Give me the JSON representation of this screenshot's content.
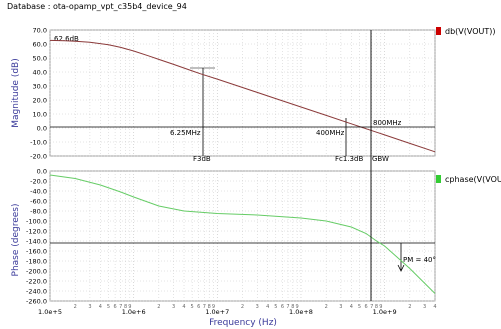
{
  "header": {
    "database_label": "Database : ota-opamp_vpt_c35b4_device_94"
  },
  "colors": {
    "magnitude": "#8b3a3a",
    "phase": "#66cc66",
    "legend_mag": "#cc0000",
    "legend_phase": "#33cc33"
  },
  "chart_data": [
    {
      "type": "line",
      "legend": "db(V(VOUT))",
      "xlabel": "",
      "ylabel": "Magnitude (dB)",
      "xscale": "log",
      "xlim": [
        100000,
        4000000000
      ],
      "ylim": [
        -20,
        70
      ],
      "yticks": [
        70.0,
        60.0,
        50.0,
        40.0,
        30.0,
        20.0,
        10.0,
        0.0,
        -10.0,
        -20.0
      ],
      "ytick_labels": [
        "70.0",
        "60.0",
        "50.0",
        "40.0",
        "30.0",
        "20.0",
        "10.0",
        "0.0",
        "-10.0",
        "-20.0"
      ],
      "grid": true,
      "series": [
        {
          "name": "db(V(VOUT))",
          "x": [
            100000,
            150000,
            200000,
            300000,
            500000,
            700000,
            1000000,
            1500000,
            2000000,
            3000000,
            5000000,
            6250000,
            10000000,
            20000000,
            50000000,
            100000000,
            200000000,
            400000000,
            800000000,
            1000000000,
            2000000000,
            4000000000
          ],
          "y": [
            62.6,
            62.3,
            62.0,
            61.2,
            59.4,
            57.6,
            55.0,
            51.6,
            49.0,
            45.4,
            40.8,
            38.8,
            34.9,
            28.9,
            21.0,
            15.0,
            9.0,
            3.0,
            -3.0,
            -4.9,
            -11.0,
            -17.0
          ]
        }
      ],
      "annotations": [
        "62.6dB",
        "6.25MHz",
        "F3dB",
        "400MHz",
        "Fc1.3dB",
        "800MHz"
      ]
    },
    {
      "type": "line",
      "legend": "cphase(V(VOU",
      "xlabel": "Frequency (Hz)",
      "ylabel": "Phase (degrees)",
      "xscale": "log",
      "xlim": [
        100000,
        4000000000
      ],
      "ylim": [
        -260,
        0
      ],
      "yticks": [
        0,
        -20,
        -40,
        -60,
        -80,
        -100,
        -120,
        -140,
        -160,
        -180,
        -200,
        -220,
        -240,
        -260
      ],
      "ytick_labels": [
        "0.0",
        "-20.0",
        "-40.0",
        "-60.0",
        "-80.0",
        "-100.0",
        "-120.0",
        "-140.0",
        "-160.0",
        "-180.0",
        "-200.0",
        "-220.0",
        "-240.0",
        "-260.0"
      ],
      "xtick_labels": [
        "1.0e+5",
        "1.0e+6",
        "1.0e+7",
        "1.0e+8",
        "1.0e+9"
      ],
      "grid": true,
      "series": [
        {
          "name": "cphase(V(VOU",
          "x": [
            100000,
            200000,
            400000,
            700000,
            1000000,
            2000000,
            4000000,
            10000000,
            30000000,
            100000000,
            200000000,
            400000000,
            600000000,
            800000000,
            1000000000,
            2000000000,
            4000000000
          ],
          "y": [
            -8,
            -15,
            -28,
            -42,
            -52,
            -70,
            -80,
            -85,
            -88,
            -94,
            -100,
            -112,
            -125,
            -140,
            -150,
            -195,
            -245
          ]
        }
      ],
      "annotations": [
        "GBW",
        "PM = 40°"
      ]
    }
  ]
}
